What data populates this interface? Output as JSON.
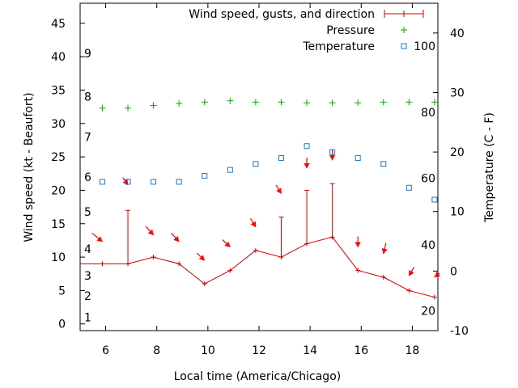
{
  "chart_data": {
    "type": "line",
    "xlabel": "Local time (America/Chicago)",
    "ylabel": "Wind speed (kt - Beaufort)",
    "y2label": "Temperature (C - F)",
    "xlim": [
      5.0,
      19.0
    ],
    "ylim": [
      -1,
      48
    ],
    "y2lim": [
      -10,
      45
    ],
    "x_ticks": [
      6,
      8,
      10,
      12,
      14,
      16,
      18
    ],
    "y_ticks": [
      0,
      5,
      10,
      15,
      20,
      25,
      30,
      35,
      40,
      45
    ],
    "y2_ticks": [
      -10,
      0,
      10,
      20,
      30,
      40
    ],
    "beaufort_labels": [
      {
        "text": "1",
        "y": 1.0
      },
      {
        "text": "2",
        "y": 4.2
      },
      {
        "text": "3",
        "y": 7.2
      },
      {
        "text": "4",
        "y": 11.2
      },
      {
        "text": "5",
        "y": 16.8
      },
      {
        "text": "6",
        "y": 22.0
      },
      {
        "text": "7",
        "y": 28.0
      },
      {
        "text": "8",
        "y": 34.0
      },
      {
        "text": "9",
        "y": 40.5
      }
    ],
    "fahrenheit_labels": [
      {
        "text": "20",
        "y": -6.7
      },
      {
        "text": "40",
        "y": 4.4
      },
      {
        "text": "60",
        "y": 15.6
      },
      {
        "text": "80",
        "y": 26.7
      },
      {
        "text": "100",
        "y": 37.8
      }
    ],
    "legend": {
      "position": "top-right",
      "entries": [
        "Wind speed, gusts, and direction",
        "Pressure",
        "Temperature"
      ]
    },
    "colors": {
      "wind": "#cc0000",
      "direction": "#ff0000",
      "pressure": "#00aa00",
      "temperature": "#1a75d1"
    },
    "series": [
      {
        "name": "Wind speed, gusts, and direction",
        "points": [
          {
            "x": 5.0,
            "y": 9
          },
          {
            "x": 5.87,
            "y": 9,
            "gust": 9
          },
          {
            "x": 6.87,
            "y": 9,
            "gust": 17
          },
          {
            "x": 7.87,
            "y": 10,
            "gust": 10
          },
          {
            "x": 8.87,
            "y": 9,
            "gust": 9
          },
          {
            "x": 9.87,
            "y": 6,
            "gust": 6
          },
          {
            "x": 10.87,
            "y": 8,
            "gust": 8
          },
          {
            "x": 11.87,
            "y": 11,
            "gust": 11
          },
          {
            "x": 12.87,
            "y": 10,
            "gust": 16
          },
          {
            "x": 13.87,
            "y": 12,
            "gust": 20
          },
          {
            "x": 14.87,
            "y": 13,
            "gust": 21
          },
          {
            "x": 15.87,
            "y": 8,
            "gust": 8
          },
          {
            "x": 16.87,
            "y": 7,
            "gust": 7
          },
          {
            "x": 17.87,
            "y": 5,
            "gust": 5
          },
          {
            "x": 18.87,
            "y": 4,
            "gust": 4
          }
        ]
      },
      {
        "name": "Direction",
        "arrows": [
          {
            "x": 5.87,
            "y": 12.3,
            "dx": 0.4,
            "dy": 1.3
          },
          {
            "x": 6.87,
            "y": 20.8,
            "dx": 0.2,
            "dy": 1.1
          },
          {
            "x": 7.87,
            "y": 13.3,
            "dx": 0.3,
            "dy": 1.3
          },
          {
            "x": 8.87,
            "y": 12.3,
            "dx": 0.3,
            "dy": 1.3
          },
          {
            "x": 9.87,
            "y": 9.5,
            "dx": 0.3,
            "dy": 1.1
          },
          {
            "x": 10.87,
            "y": 11.5,
            "dx": 0.3,
            "dy": 1.1
          },
          {
            "x": 11.87,
            "y": 14.5,
            "dx": 0.2,
            "dy": 1.3
          },
          {
            "x": 12.87,
            "y": 19.5,
            "dx": 0.2,
            "dy": 1.3
          },
          {
            "x": 13.87,
            "y": 23.3,
            "dx": 0.0,
            "dy": 1.6
          },
          {
            "x": 14.87,
            "y": 24.5,
            "dx": 0.0,
            "dy": 1.6
          },
          {
            "x": 15.87,
            "y": 11.5,
            "dx": 0.0,
            "dy": 1.6
          },
          {
            "x": 16.87,
            "y": 10.5,
            "dx": -0.1,
            "dy": 1.6
          },
          {
            "x": 17.87,
            "y": 7.2,
            "dx": -0.2,
            "dy": 1.3
          },
          {
            "x": 18.87,
            "y": 7.0,
            "dx": -0.2,
            "dy": 0.6
          }
        ]
      },
      {
        "name": "Pressure",
        "x": [
          5.87,
          6.87,
          7.87,
          8.87,
          9.87,
          10.87,
          11.87,
          12.87,
          13.87,
          14.87,
          15.87,
          16.87,
          17.87,
          18.87
        ],
        "y": [
          32.3,
          32.3,
          32.7,
          33.0,
          33.2,
          33.4,
          33.2,
          33.2,
          33.1,
          33.1,
          33.1,
          33.2,
          33.2,
          33.2
        ]
      },
      {
        "name": "Temperature",
        "x": [
          5.87,
          6.87,
          7.87,
          8.87,
          9.87,
          10.87,
          11.87,
          12.87,
          13.87,
          14.87,
          15.87,
          16.87,
          17.87,
          18.87
        ],
        "y": [
          15,
          15,
          15,
          15,
          16,
          17,
          18,
          19,
          21,
          20,
          19,
          18,
          14,
          12
        ]
      }
    ]
  }
}
